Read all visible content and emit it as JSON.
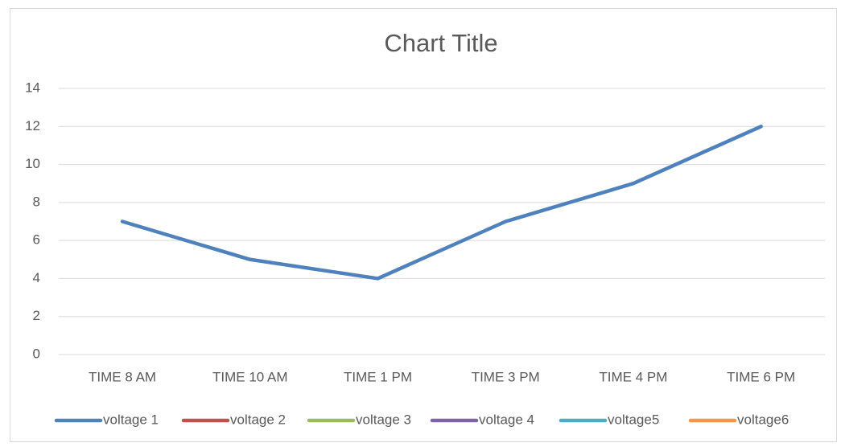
{
  "chart_data": {
    "type": "line",
    "title": "Chart Title",
    "categories": [
      "TIME 8 AM",
      "TIME 10 AM",
      "TIME 1 PM",
      "TIME 3 PM",
      "TIME 4 PM",
      "TIME 6 PM"
    ],
    "series": [
      {
        "name": "voltage 1",
        "color": "#4f81bd",
        "values": [
          7,
          5,
          4,
          7,
          9,
          12
        ]
      },
      {
        "name": "voltage 2",
        "color": "#c0504d",
        "values": [
          null,
          null,
          null,
          null,
          null,
          null
        ]
      },
      {
        "name": "voltage 3",
        "color": "#9bbb59",
        "values": [
          null,
          null,
          null,
          null,
          null,
          null
        ]
      },
      {
        "name": "voltage 4",
        "color": "#8064a2",
        "values": [
          null,
          null,
          null,
          null,
          null,
          null
        ]
      },
      {
        "name": "voltage5",
        "color": "#4bacc6",
        "values": [
          null,
          null,
          null,
          null,
          null,
          null
        ]
      },
      {
        "name": "voltage6",
        "color": "#f79646",
        "values": [
          null,
          null,
          null,
          null,
          null,
          null
        ]
      }
    ],
    "ylim": [
      0,
      14
    ],
    "yticks": [
      0,
      2,
      4,
      6,
      8,
      10,
      12,
      14
    ],
    "grid": true,
    "legend": "bottom"
  }
}
